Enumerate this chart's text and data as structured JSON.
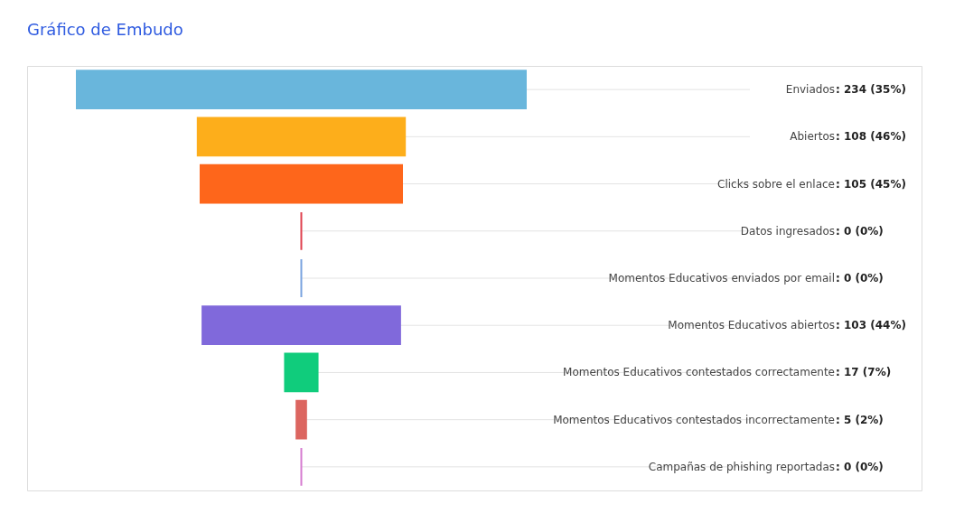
{
  "chart_data": {
    "type": "other",
    "title": "Gráfico de Embudo",
    "categories": [
      "Enviados",
      "Abiertos",
      "Clicks sobre el enlace",
      "Datos ingresados",
      "Momentos Educativos enviados por email",
      "Momentos Educativos abiertos",
      "Momentos Educativos contestados correctamente",
      "Momentos Educativos contestados incorrectamente",
      "Campañas de phishing reportadas"
    ],
    "values": [
      234,
      108,
      105,
      0,
      0,
      103,
      17,
      5,
      0
    ],
    "value_labels": [
      ": 234 (35%)",
      ": 108 (46%)",
      ": 105 (45%)",
      ": 0 (0%)",
      ": 0 (0%)",
      ": 103 (44%)",
      ": 17 (7%)",
      ": 5 (2%)",
      ": 0 (0%)"
    ],
    "colors": [
      "#69b6dc",
      "#fdae1b",
      "#fe661b",
      "#e0424f",
      "#7aa3e0",
      "#8069db",
      "#10cc7c",
      "#dc6660",
      "#d67cd0"
    ]
  }
}
